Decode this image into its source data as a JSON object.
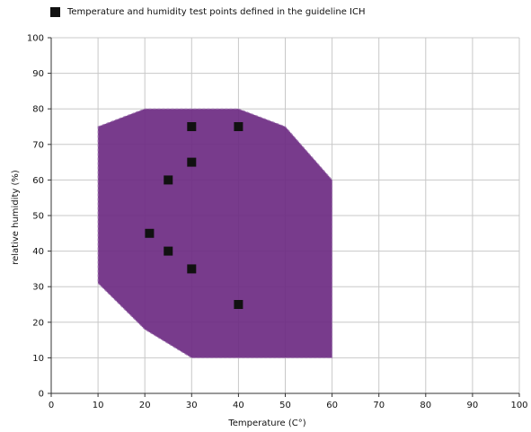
{
  "chart_data": {
    "type": "scatter",
    "legend": {
      "label": "Temperature and humidity test points defined in the guideline ICH",
      "position": "top-left"
    },
    "xlabel": "Temperature (C°)",
    "ylabel": "relative humidity (%)",
    "xlim": [
      0,
      100
    ],
    "ylim": [
      0,
      100
    ],
    "xticks": [
      0,
      10,
      20,
      30,
      40,
      50,
      60,
      70,
      80,
      90,
      100
    ],
    "yticks": [
      0,
      10,
      20,
      30,
      40,
      50,
      60,
      70,
      80,
      90,
      100
    ],
    "grid": true,
    "region": {
      "points": [
        [
          10,
          75
        ],
        [
          20,
          80
        ],
        [
          40,
          80
        ],
        [
          50,
          75
        ],
        [
          60,
          60
        ],
        [
          60,
          10
        ],
        [
          30,
          10
        ],
        [
          20,
          18
        ],
        [
          10,
          31
        ]
      ],
      "color": "#6d2a82"
    },
    "points": [
      {
        "x": 30,
        "y": 75
      },
      {
        "x": 40,
        "y": 75
      },
      {
        "x": 30,
        "y": 65
      },
      {
        "x": 25,
        "y": 60
      },
      {
        "x": 21,
        "y": 45
      },
      {
        "x": 25,
        "y": 40
      },
      {
        "x": 30,
        "y": 35
      },
      {
        "x": 40,
        "y": 25
      }
    ],
    "colors": {
      "marker": "#111111",
      "grid": "#c8c8c8",
      "axis": "#333333"
    }
  }
}
